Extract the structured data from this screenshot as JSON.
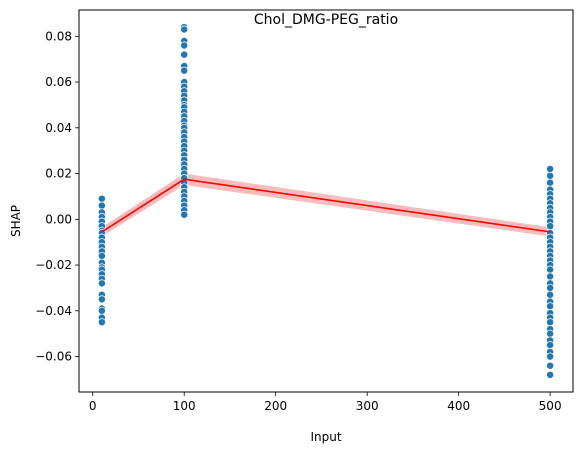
{
  "chart_data": {
    "type": "scatter",
    "title": "Chol_DMG-PEG_ratio",
    "xlabel": "Input",
    "ylabel": "SHAP",
    "xlim": [
      -15,
      525
    ],
    "ylim": [
      -0.0755,
      0.0915
    ],
    "xticks": [
      0,
      100,
      200,
      300,
      400,
      500
    ],
    "yticks": [
      -0.06,
      -0.04,
      -0.02,
      0.0,
      0.02,
      0.04,
      0.06,
      0.08
    ],
    "ytick_labels": [
      "−0.06",
      "−0.04",
      "−0.02",
      "0.00",
      "0.02",
      "0.04",
      "0.06",
      "0.08"
    ],
    "grid": false,
    "point_color": "#1f77b4",
    "line_color": "#ff0000",
    "band_color": "#f4a6a6",
    "series": [
      {
        "type": "scatter",
        "points": [
          {
            "x": 10,
            "y": [
              0.009,
              0.006,
              0.003,
              0.001,
              -0.001,
              -0.003,
              -0.005,
              -0.006,
              -0.008,
              -0.01,
              -0.012,
              -0.014,
              -0.016,
              -0.019,
              -0.021,
              -0.022,
              -0.024,
              -0.026,
              -0.028,
              -0.033,
              -0.035,
              -0.039,
              -0.04,
              -0.043,
              -0.045
            ]
          },
          {
            "x": 100,
            "y": [
              0.084,
              0.083,
              0.078,
              0.076,
              0.072,
              0.067,
              0.065,
              0.06,
              0.058,
              0.056,
              0.054,
              0.052,
              0.05,
              0.049,
              0.047,
              0.045,
              0.043,
              0.041,
              0.04,
              0.038,
              0.036,
              0.034,
              0.032,
              0.03,
              0.028,
              0.026,
              0.024,
              0.022,
              0.02,
              0.018,
              0.016,
              0.014,
              0.012,
              0.01,
              0.008,
              0.006,
              0.004,
              0.002
            ]
          },
          {
            "x": 500,
            "y": [
              0.022,
              0.019,
              0.016,
              0.013,
              0.011,
              0.009,
              0.007,
              0.005,
              0.003,
              0.001,
              -0.001,
              -0.003,
              -0.006,
              -0.008,
              -0.01,
              -0.012,
              -0.014,
              -0.016,
              -0.018,
              -0.02,
              -0.022,
              -0.025,
              -0.028,
              -0.03,
              -0.033,
              -0.036,
              -0.038,
              -0.041,
              -0.043,
              -0.045,
              -0.048,
              -0.05,
              -0.053,
              -0.055,
              -0.058,
              -0.06,
              -0.064,
              -0.068
            ]
          }
        ]
      },
      {
        "type": "line",
        "x": [
          10,
          100,
          500
        ],
        "y": [
          -0.0055,
          0.0175,
          -0.0055
        ],
        "band_lower": [
          -0.0075,
          0.015,
          -0.0075
        ],
        "band_upper": [
          -0.0035,
          0.02,
          -0.0035
        ]
      }
    ]
  }
}
